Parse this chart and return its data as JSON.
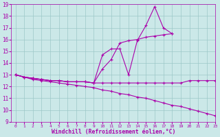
{
  "xlabel": "Windchill (Refroidissement éolien,°C)",
  "xlim": [
    -0.5,
    23
  ],
  "ylim": [
    9,
    19
  ],
  "xticks": [
    0,
    1,
    2,
    3,
    4,
    5,
    6,
    7,
    8,
    9,
    10,
    11,
    12,
    13,
    14,
    15,
    16,
    17,
    18,
    19,
    20,
    21,
    22,
    23
  ],
  "yticks": [
    9,
    10,
    11,
    12,
    13,
    14,
    15,
    16,
    17,
    18,
    19
  ],
  "bg_color": "#cbe8e8",
  "line_color": "#aa00aa",
  "grid_color": "#9cc8c8",
  "lines": [
    {
      "x": [
        0,
        1,
        2,
        3,
        4,
        5,
        6,
        7,
        8,
        9,
        10,
        11,
        12,
        13,
        14,
        15,
        16,
        17,
        18
      ],
      "y": [
        13,
        12.8,
        12.7,
        12.6,
        12.5,
        12.5,
        12.4,
        12.4,
        12.4,
        12.3,
        14.7,
        15.2,
        15.2,
        13.0,
        15.9,
        17.2,
        18.8,
        17.0,
        16.5
      ]
    },
    {
      "x": [
        0,
        1,
        2,
        3,
        4,
        5,
        6,
        7,
        8,
        9,
        10,
        11,
        12,
        13,
        14,
        15,
        16,
        17,
        18
      ],
      "y": [
        13,
        12.8,
        12.7,
        12.6,
        12.5,
        12.5,
        12.4,
        12.4,
        12.4,
        12.3,
        13.5,
        14.3,
        15.7,
        15.9,
        16.0,
        16.2,
        16.3,
        16.4,
        16.5
      ]
    },
    {
      "x": [
        0,
        1,
        2,
        3,
        4,
        5,
        6,
        7,
        8,
        9,
        10,
        11,
        12,
        13,
        14,
        15,
        16,
        17,
        18,
        19,
        20,
        21,
        22,
        23
      ],
      "y": [
        13,
        12.8,
        12.7,
        12.6,
        12.5,
        12.5,
        12.4,
        12.4,
        12.4,
        12.3,
        12.3,
        12.3,
        12.3,
        12.3,
        12.3,
        12.3,
        12.3,
        12.3,
        12.3,
        12.3,
        12.5,
        12.5,
        12.5,
        12.5
      ]
    },
    {
      "x": [
        0,
        1,
        2,
        3,
        4,
        5,
        6,
        7,
        8,
        9,
        10,
        11,
        12,
        13,
        14,
        15,
        16,
        17,
        18,
        19,
        20,
        21,
        22,
        23
      ],
      "y": [
        13,
        12.8,
        12.6,
        12.5,
        12.4,
        12.3,
        12.2,
        12.1,
        12.0,
        11.9,
        11.7,
        11.6,
        11.4,
        11.3,
        11.1,
        11.0,
        10.8,
        10.6,
        10.4,
        10.3,
        10.1,
        9.9,
        9.7,
        9.5
      ]
    }
  ],
  "font_family": "monospace",
  "tick_fontsize": 5.5,
  "label_fontsize": 5.8
}
